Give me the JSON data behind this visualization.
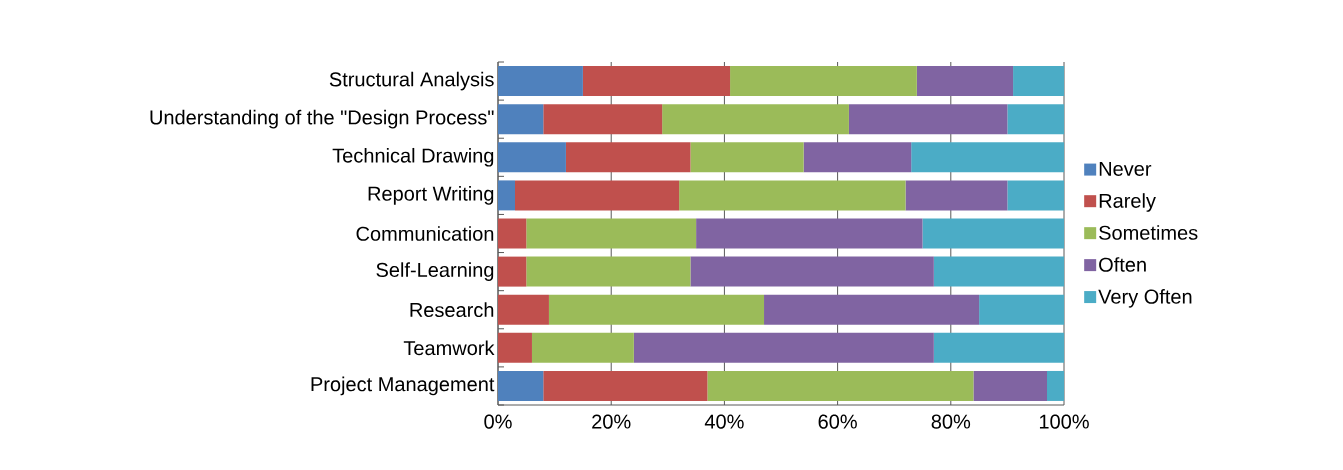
{
  "chart_data": {
    "type": "bar",
    "orientation": "horizontal",
    "stacked": true,
    "categories": [
      "Structural Analysis",
      "Understanding of the \"Design Process\"",
      "Technical Drawing",
      "Report Writing",
      "Communication",
      "Self-Learning",
      "Research",
      "Teamwork",
      "Project Management"
    ],
    "series": [
      {
        "name": "Never",
        "color": "#4f81bd",
        "values": [
          15,
          8,
          12,
          3,
          0,
          0,
          0,
          0,
          8
        ]
      },
      {
        "name": "Rarely",
        "color": "#c0504d",
        "values": [
          26,
          21,
          22,
          29,
          5,
          5,
          9,
          6,
          29
        ]
      },
      {
        "name": "Sometimes",
        "color": "#9bbb59",
        "values": [
          33,
          33,
          20,
          40,
          30,
          29,
          38,
          18,
          47
        ]
      },
      {
        "name": "Often",
        "color": "#8064a2",
        "values": [
          17,
          28,
          19,
          18,
          40,
          43,
          38,
          53,
          13
        ]
      },
      {
        "name": "Very Often",
        "color": "#4bacc6",
        "values": [
          9,
          10,
          27,
          10,
          25,
          23,
          15,
          23,
          3
        ]
      }
    ],
    "xlim": [
      0,
      100
    ],
    "xticks": [
      {
        "value": 0,
        "label": "0%"
      },
      {
        "value": 20,
        "label": "20%"
      },
      {
        "value": 40,
        "label": "40%"
      },
      {
        "value": 60,
        "label": "60%"
      },
      {
        "value": 80,
        "label": "80%"
      },
      {
        "value": 100,
        "label": "100%"
      }
    ],
    "grid": "x",
    "legend": "right"
  }
}
